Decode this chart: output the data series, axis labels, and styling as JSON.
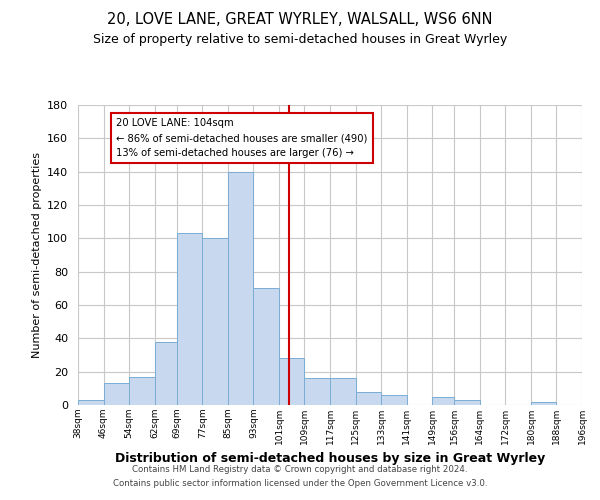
{
  "title": "20, LOVE LANE, GREAT WYRLEY, WALSALL, WS6 6NN",
  "subtitle": "Size of property relative to semi-detached houses in Great Wyrley",
  "xlabel": "Distribution of semi-detached houses by size in Great Wyrley",
  "ylabel": "Number of semi-detached properties",
  "bin_labels": [
    "38sqm",
    "46sqm",
    "54sqm",
    "62sqm",
    "69sqm",
    "77sqm",
    "85sqm",
    "93sqm",
    "101sqm",
    "109sqm",
    "117sqm",
    "125sqm",
    "133sqm",
    "141sqm",
    "149sqm",
    "156sqm",
    "164sqm",
    "172sqm",
    "180sqm",
    "188sqm",
    "196sqm"
  ],
  "bin_edges": [
    38,
    46,
    54,
    62,
    69,
    77,
    85,
    93,
    101,
    109,
    117,
    125,
    133,
    141,
    149,
    156,
    164,
    172,
    180,
    188,
    196
  ],
  "bar_heights": [
    3,
    13,
    17,
    38,
    103,
    100,
    140,
    70,
    28,
    16,
    16,
    8,
    6,
    0,
    5,
    3,
    0,
    0,
    2,
    0
  ],
  "bar_color": "#c8d9ef",
  "bar_edge_color": "#7aadd4",
  "vline_x": 104,
  "vline_color": "#cc0000",
  "annotation_title": "20 LOVE LANE: 104sqm",
  "annotation_line1": "← 86% of semi-detached houses are smaller (490)",
  "annotation_line2": "13% of semi-detached houses are larger (76) →",
  "annotation_box_color": "#ffffff",
  "annotation_box_edge": "#cc0000",
  "ylim": [
    0,
    180
  ],
  "yticks": [
    0,
    20,
    40,
    60,
    80,
    100,
    120,
    140,
    160,
    180
  ],
  "footer_line1": "Contains HM Land Registry data © Crown copyright and database right 2024.",
  "footer_line2": "Contains public sector information licensed under the Open Government Licence v3.0.",
  "background_color": "#ffffff",
  "grid_color": "#c8c8c8"
}
